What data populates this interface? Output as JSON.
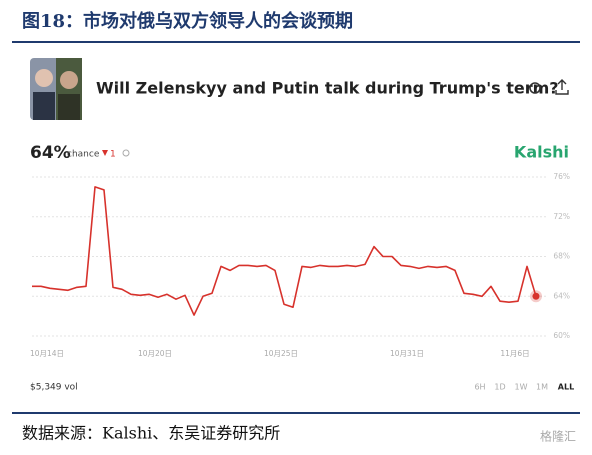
{
  "figure_title": "图18：市场对俄乌双方领导人的会谈预期",
  "source": "数据来源：Kalshi、东吴证券研究所",
  "watermark": "格隆汇",
  "market": {
    "question": "Will Zelenskyy and Putin talk during Trump's term?",
    "chance_value": "64%",
    "chance_label": "chance",
    "change": "1",
    "brand": "Kalshi",
    "volume": "$5,349 vol",
    "ranges": [
      "6H",
      "1D",
      "1W",
      "1M",
      "ALL"
    ]
  },
  "chart_data": {
    "type": "line",
    "color": "#d7322c",
    "categories": [
      null,
      null,
      "10月14日",
      null,
      null,
      null,
      null,
      null,
      null,
      null,
      null,
      null,
      null,
      null,
      "10月20日",
      null,
      null,
      null,
      null,
      null,
      null,
      null,
      null,
      null,
      null,
      null,
      null,
      null,
      "10月25日",
      null,
      null,
      null,
      null,
      null,
      null,
      null,
      null,
      null,
      null,
      null,
      null,
      null,
      "10月31日",
      null,
      null,
      null,
      null,
      null,
      null,
      null,
      null,
      null,
      null,
      null,
      "11月6日",
      null,
      null
    ],
    "values": [
      65,
      65,
      64.8,
      64.7,
      64.6,
      64.9,
      65,
      75,
      74.7,
      64.9,
      64.7,
      64.2,
      64.1,
      64.2,
      63.9,
      64.2,
      63.7,
      64.1,
      62.1,
      64,
      64.3,
      67,
      66.6,
      67.1,
      67.1,
      67,
      67.1,
      66.6,
      63.2,
      62.9,
      67,
      66.9,
      67.1,
      67,
      67,
      67.1,
      67,
      67.2,
      69,
      68,
      68,
      67.1,
      67,
      66.8,
      67,
      66.9,
      67,
      66.6,
      64.3,
      64.2,
      64,
      65,
      63.5,
      63.4,
      63.5,
      67,
      64
    ],
    "ylim": [
      60,
      76
    ],
    "yticks": [
      {
        "value": 60,
        "label": "60%"
      },
      {
        "value": 64,
        "label": "64%"
      },
      {
        "value": 68,
        "label": "68%"
      },
      {
        "value": 72,
        "label": "72%"
      },
      {
        "value": 76,
        "label": "76%"
      }
    ],
    "grid": true
  }
}
